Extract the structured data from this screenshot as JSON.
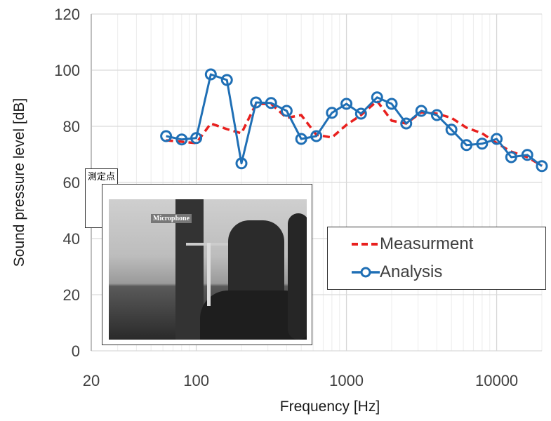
{
  "chart_data": {
    "type": "line",
    "xlabel": "Frequency [Hz]",
    "ylabel": "Sound pressure level [dB]",
    "xscale": "log",
    "xlim": [
      20,
      20000
    ],
    "ylim": [
      0,
      120
    ],
    "xticks": [
      "20",
      "100",
      "1000",
      "10000"
    ],
    "yticks": [
      "0",
      "20",
      "40",
      "60",
      "80",
      "100",
      "120"
    ],
    "grid": true,
    "legend_position": "center-right",
    "x": [
      63,
      80,
      100,
      125,
      160,
      200,
      250,
      315,
      400,
      500,
      630,
      800,
      1000,
      1250,
      1600,
      2000,
      2500,
      3150,
      4000,
      5000,
      6300,
      8000,
      10000,
      12500,
      16000,
      20000
    ],
    "series": [
      {
        "name": "Measurment",
        "color": "#e8201e",
        "style": "dashed",
        "values": [
          75,
          74.5,
          74,
          81,
          79,
          77.5,
          88,
          88,
          83,
          84,
          77,
          76,
          80.5,
          84,
          89,
          82,
          81,
          85,
          84.5,
          83,
          79.5,
          77.5,
          74,
          71,
          69,
          66
        ]
      },
      {
        "name": "Analysis",
        "color": "#1f6fb5",
        "style": "solid-circle",
        "values": [
          76.5,
          75.3,
          75.8,
          98.5,
          96.5,
          66.8,
          88.5,
          88.3,
          85.5,
          75.5,
          76.5,
          84.8,
          88,
          84.5,
          90.3,
          88,
          81,
          85.5,
          84,
          78.8,
          73.3,
          73.8,
          75.5,
          69,
          69.8,
          65.8
        ]
      }
    ]
  },
  "inset": {
    "point_label": "測定点",
    "mic_label": "Microphone"
  }
}
